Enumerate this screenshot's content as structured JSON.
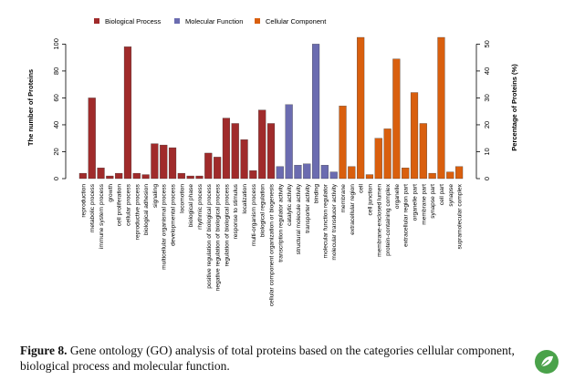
{
  "chart_data": {
    "type": "bar",
    "legend": {
      "placement": "top",
      "entries": [
        {
          "name": "Biological Process",
          "color": "#a02b2b"
        },
        {
          "name": "Molecular Function",
          "color": "#6b6cb0"
        },
        {
          "name": "Cellular Component",
          "color": "#d95f0e"
        }
      ]
    },
    "ylabel": "The number of Proteins",
    "y2label": "Percentage of Proteins (%)",
    "ylim": [
      0,
      105
    ],
    "yticks": [
      0,
      20,
      40,
      60,
      80,
      100
    ],
    "y2lim": [
      0,
      52.5
    ],
    "y2ticks": [
      0,
      10,
      20,
      30,
      40,
      50
    ],
    "grid": false,
    "categories": [
      "reproduction",
      "metabolic process",
      "immune system process",
      "growth",
      "cell proliferation",
      "cellular process",
      "reproductive process",
      "biological adhesion",
      "signaling",
      "multicellular organismal process",
      "developmental process",
      "locomotion",
      "biological phase",
      "rhythmic process",
      "positive regulation of biological process",
      "negative regulation of biological process",
      "regulation of biological process",
      "response to stimulus",
      "localization",
      "multi-organism process",
      "biological regulation",
      "cellular component organization or biogenesis",
      "transcription regulator activity",
      "catalytic activity",
      "structural molecule activity",
      "transporter activity",
      "binding",
      "molecular function regulator",
      "molecular transducer activity",
      "membrane",
      "extracellular region",
      "cell",
      "cell junction",
      "membrane-enclosed lumen",
      "protein-containing complex",
      "organelle",
      "extracellular region part",
      "organelle part",
      "membrane part",
      "synapse part",
      "cell part",
      "synapse",
      "supramolecular complex"
    ],
    "groups": [
      "Biological Process",
      "Biological Process",
      "Biological Process",
      "Biological Process",
      "Biological Process",
      "Biological Process",
      "Biological Process",
      "Biological Process",
      "Biological Process",
      "Biological Process",
      "Biological Process",
      "Biological Process",
      "Biological Process",
      "Biological Process",
      "Biological Process",
      "Biological Process",
      "Biological Process",
      "Biological Process",
      "Biological Process",
      "Biological Process",
      "Biological Process",
      "Biological Process",
      "Molecular Function",
      "Molecular Function",
      "Molecular Function",
      "Molecular Function",
      "Molecular Function",
      "Molecular Function",
      "Molecular Function",
      "Cellular Component",
      "Cellular Component",
      "Cellular Component",
      "Cellular Component",
      "Cellular Component",
      "Cellular Component",
      "Cellular Component",
      "Cellular Component",
      "Cellular Component",
      "Cellular Component",
      "Cellular Component",
      "Cellular Component",
      "Cellular Component",
      "Cellular Component"
    ],
    "values": [
      4,
      60,
      8,
      2,
      4,
      98,
      4,
      3,
      26,
      25,
      23,
      4,
      2,
      2,
      19,
      16,
      45,
      41,
      29,
      6,
      51,
      41,
      9,
      55,
      10,
      11,
      100,
      10,
      5,
      54,
      9,
      105,
      3,
      30,
      37,
      89,
      8,
      64,
      41,
      4,
      105,
      5,
      9
    ]
  },
  "caption": {
    "label": "Figure 8.",
    "text": " Gene ontology (GO) analysis of total proteins based on the categories cellular component, biological process and molecular function."
  }
}
